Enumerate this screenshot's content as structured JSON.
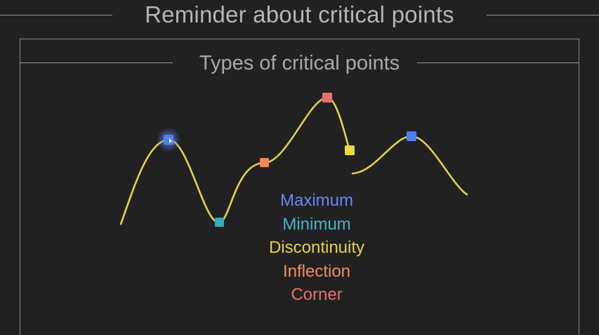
{
  "header": {
    "title": "Reminder about critical points"
  },
  "panel": {
    "title": "Types of critical points"
  },
  "legend": {
    "items": [
      {
        "label": "Maximum",
        "color": "#6a88f5"
      },
      {
        "label": "Minimum",
        "color": "#46b3c6"
      },
      {
        "label": "Discontinuity",
        "color": "#e6d24a"
      },
      {
        "label": "Inflection",
        "color": "#f0905a"
      },
      {
        "label": "Corner",
        "color": "#e8716a"
      }
    ]
  },
  "colors": {
    "background": "#212121",
    "curve": "#e2d14b",
    "maximum_marker": "#4f7ff0",
    "minimum_marker": "#3aa7bd",
    "discontinuity_marker": "#e8d93c",
    "inflection_marker": "#ef8a55",
    "corner_marker": "#e8716a"
  }
}
